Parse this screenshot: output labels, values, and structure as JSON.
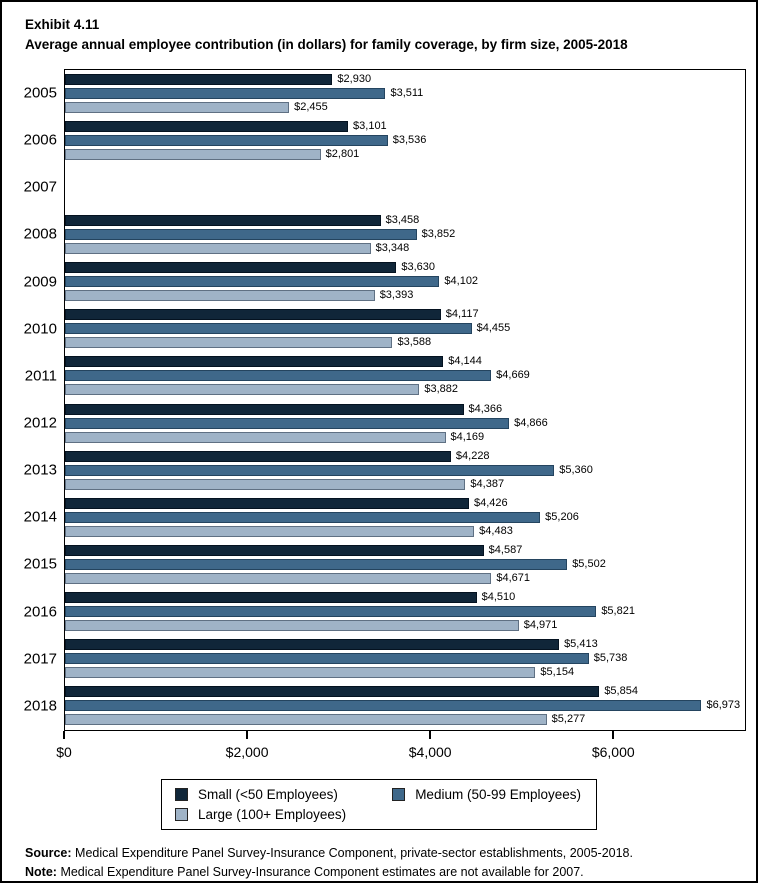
{
  "header": {
    "exhibit": "Exhibit 4.11",
    "title": "Average annual employee contribution (in dollars) for family coverage, by firm size, 2005-2018"
  },
  "chart_data": {
    "type": "bar",
    "orientation": "horizontal",
    "title": "Average annual employee contribution (in dollars) for family coverage, by firm size, 2005-2018",
    "categories": [
      "2005",
      "2006",
      "2007",
      "2008",
      "2009",
      "2010",
      "2011",
      "2012",
      "2013",
      "2014",
      "2015",
      "2016",
      "2017",
      "2018"
    ],
    "series": [
      {
        "name": "Small (<50 Employees)",
        "color": "#102639",
        "border_color": "#041220",
        "values": [
          2930,
          3101,
          null,
          3458,
          3630,
          4117,
          4144,
          4366,
          4228,
          4426,
          4587,
          4510,
          5413,
          5854
        ]
      },
      {
        "name": "Medium (50-99 Employees)",
        "color": "#3f688a",
        "border_color": "#24445f",
        "values": [
          3511,
          3536,
          null,
          3852,
          4102,
          4455,
          4669,
          4866,
          5360,
          5206,
          5502,
          5821,
          5738,
          6973
        ]
      },
      {
        "name": "Large (100+ Employees)",
        "color": "#9fb3c7",
        "border_color": "#5f7083",
        "values": [
          2455,
          2801,
          null,
          3348,
          3393,
          3588,
          3882,
          4169,
          4387,
          4483,
          4671,
          4971,
          5154,
          5277
        ]
      }
    ],
    "x_ticks": [
      {
        "value": 0,
        "label": "$0"
      },
      {
        "value": 2000,
        "label": "$2,000"
      },
      {
        "value": 4000,
        "label": "$4,000"
      },
      {
        "value": 6000,
        "label": "$6,000"
      }
    ],
    "xlim": [
      0,
      7450
    ],
    "value_label_prefix": "$",
    "grid": false,
    "legend_position": "bottom",
    "missing_data_years": [
      "2007"
    ]
  },
  "footer": {
    "source_label": "Source:",
    "source_text": "Medical Expenditure Panel Survey-Insurance Component, private-sector establishments, 2005-2018.",
    "note_label": "Note:",
    "note_text": "Medical Expenditure Panel Survey-Insurance Component estimates are not available for 2007."
  }
}
